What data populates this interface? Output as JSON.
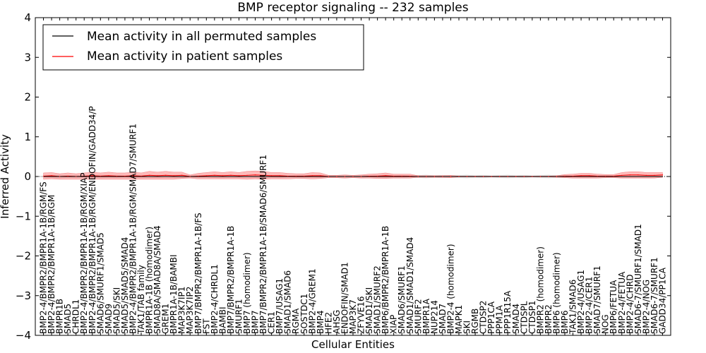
{
  "chart_data": {
    "type": "line",
    "title": "BMP receptor signaling -- 232 samples",
    "xlabel": "Cellular Entities",
    "ylabel": "Inferred Activity",
    "ylim": [
      -4,
      4
    ],
    "yticks": [
      -4,
      -3,
      -2,
      -1,
      0,
      1,
      2,
      3,
      4
    ],
    "legend_placement": "top-left",
    "grid": false,
    "colors": {
      "permuted": "#000000",
      "patient": "#ff0000",
      "patient_band": "#ff7f7f",
      "permuted_band": "#bbbbbb"
    },
    "categories": [
      "BMP2-4/BMPR2/BMPR1A-1B/RGM/FS",
      "BMP2-4/BMPR2/BMPR1A-1B/RGM",
      "BMPR1B",
      "SMAD5",
      "CHRDL1",
      "BMP2-4/BMPR2/BMPR1A-1B/RGM/XIAP",
      "BMP2-4/BMPR2/BMPR1A-1B/RGM/ENDOFIN/GADD34/P",
      "SMAD6/SMURF1/SMAD5",
      "SMAD9",
      "SMAD5/SKI",
      "SMAD5/SMAD5/SMAD4",
      "BMP2-4/BMPR2/BMPR1A-1B/RGM/SMAD7/SMURF1",
      "TAK1/TAB family",
      "BMPR1A-1B (homodimer)",
      "SMAD8A/SMAD8A/SMAD4",
      "GREM1",
      "BMPR1A-1B/BAMBI",
      "MAP3K7IP1",
      "MAP3K7IP2",
      "BMP7/BMPR2/BMPR1A-1B/FS",
      "FST",
      "BMP2-4/CHRDL1",
      "BAMBI",
      "BMP7/BMPR2/BMPR1A-1B",
      "SMURF1",
      "BMP7 (homodimer)",
      "BMP7",
      "BMP7/BMPR2/BMPR1A-1B/SMAD6/SMURF1",
      "CER1",
      "BMP7/USAG1",
      "SMAD1/SMAD6",
      "RGMA",
      "SOSTDC1",
      "BMP2-4/GREM1",
      "BMP4",
      "HFE2",
      "AHSG",
      "ENDOFIN/SMAD1",
      "MAP3K7",
      "ZFYVE16",
      "SMAD1/SKI",
      "SMAD1/SMURF2",
      "BMP6/BMPR2/BMPR1A-1B",
      "XIAP",
      "SMAD6/SMURF1",
      "SMAD1/SMAD1/SMAD4",
      "SMURF2",
      "BMPR1A",
      "NUP214",
      "SMAD7",
      "BMP2-4 (homodimer)",
      "MAPK1",
      "SKI",
      "RGMB",
      "CTDSP2",
      "PPP1CA",
      "PPM1A",
      "PPP1R15A",
      "SMAD4",
      "CTDSPL",
      "CTDSP1",
      "BMPR2 (homodimer)",
      "BMPR2",
      "BMP6 (homodimer)",
      "BMP6",
      "TAK1/SMAD6",
      "BMP2-4/USAG1",
      "BMP2-4/CER1",
      "SMAD7/SMURF1",
      "NOG",
      "BMP6/FETUA",
      "BMP2-4/FETUA",
      "BMP2-4/CHRD",
      "SMAD6-7/SMURF1/SMAD1",
      "BMP2-4/NOG",
      "SMAD6-7/SMURF1",
      "GADD34/PP1CA"
    ],
    "series": [
      {
        "name": "Mean activity in all permuted samples",
        "values": [
          0,
          0,
          0,
          0,
          0,
          0,
          0,
          0,
          0,
          0,
          0,
          0,
          0,
          0,
          0,
          0,
          0,
          0,
          0,
          0,
          0,
          0,
          0,
          0,
          0,
          0,
          0,
          0,
          0,
          0,
          0,
          0,
          0,
          0,
          0,
          0,
          0,
          0,
          0,
          0,
          0,
          0,
          0,
          0,
          0,
          0,
          0,
          0,
          0,
          0,
          0,
          0,
          0,
          0,
          0,
          0,
          0,
          0,
          0,
          0,
          0,
          0,
          0,
          0,
          0,
          0,
          0,
          0,
          0,
          0,
          0,
          0,
          0,
          0,
          0,
          0,
          0
        ]
      },
      {
        "name": "Mean activity in patient samples",
        "values": [
          0.01,
          0.02,
          0.0,
          0.01,
          0.0,
          0.01,
          0.02,
          0.01,
          0.02,
          0.01,
          0.01,
          0.02,
          0.01,
          0.03,
          0.02,
          0.03,
          0.02,
          0.03,
          0.0,
          0.01,
          0.02,
          0.03,
          0.02,
          0.03,
          0.02,
          0.03,
          0.04,
          0.03,
          0.02,
          0.02,
          0.01,
          0.01,
          0.01,
          0.02,
          0.02,
          0.0,
          0.0,
          0.0,
          0.0,
          0.0,
          0.01,
          0.01,
          0.02,
          0.01,
          0.01,
          0.01,
          0.0,
          0.0,
          0.0,
          0.0,
          0.0,
          0.0,
          0.0,
          0.0,
          0.0,
          0.0,
          0.0,
          0.0,
          0.0,
          0.0,
          0.0,
          0.0,
          0.0,
          0.0,
          0.01,
          0.01,
          0.02,
          0.02,
          0.01,
          0.01,
          0.01,
          0.03,
          0.04,
          0.04,
          0.03,
          0.03,
          0.04
        ],
        "spread": [
          0.08,
          0.08,
          0.07,
          0.08,
          0.07,
          0.08,
          0.09,
          0.08,
          0.09,
          0.08,
          0.08,
          0.09,
          0.08,
          0.1,
          0.09,
          0.1,
          0.09,
          0.08,
          0.04,
          0.07,
          0.08,
          0.09,
          0.08,
          0.09,
          0.08,
          0.1,
          0.1,
          0.1,
          0.08,
          0.08,
          0.07,
          0.06,
          0.06,
          0.08,
          0.07,
          0.03,
          0.03,
          0.04,
          0.03,
          0.04,
          0.05,
          0.06,
          0.07,
          0.05,
          0.05,
          0.05,
          0.02,
          0.02,
          0.02,
          0.02,
          0.03,
          0.01,
          0.01,
          0.01,
          0.01,
          0.01,
          0.01,
          0.01,
          0.01,
          0.01,
          0.01,
          0.01,
          0.01,
          0.02,
          0.04,
          0.05,
          0.06,
          0.06,
          0.05,
          0.04,
          0.04,
          0.07,
          0.08,
          0.08,
          0.07,
          0.07,
          0.06
        ]
      }
    ]
  }
}
